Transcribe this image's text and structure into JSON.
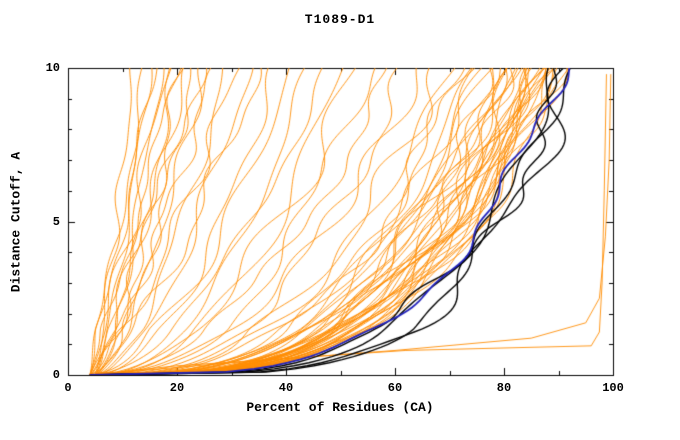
{
  "chart_data": {
    "type": "line",
    "title": "T1089-D1",
    "xlabel": "Percent of Residues (CA)",
    "ylabel": "Distance Cutoff, A",
    "xlim": [
      0,
      100
    ],
    "ylim": [
      0,
      10
    ],
    "x_ticks": [
      0,
      20,
      40,
      60,
      80,
      100
    ],
    "y_ticks": [
      0,
      5,
      10
    ],
    "grid": false,
    "legend": "none",
    "colors": {
      "orange_models": "#ff8c00",
      "black_models": "#000000",
      "blue_model": "#2222bb",
      "axis": "#000000",
      "background": "#ffffff"
    },
    "curve_format": [
      "x0_percent_at_cutoff0",
      "x_percent_at_cutoff10",
      "shape_exponent",
      "seed"
    ],
    "series": {
      "orange_models": {
        "color": "#ff8c00",
        "curves": [
          [
            5,
            12,
            0.85,
            1
          ],
          [
            4,
            14,
            0.9,
            2
          ],
          [
            5,
            15,
            0.75,
            3
          ],
          [
            4,
            16,
            0.95,
            4
          ],
          [
            5,
            17,
            0.7,
            5
          ],
          [
            4,
            18,
            0.88,
            6
          ],
          [
            5,
            19,
            0.65,
            7
          ],
          [
            4,
            20,
            0.92,
            8
          ],
          [
            5,
            21,
            0.72,
            9
          ],
          [
            4,
            22,
            0.85,
            10
          ],
          [
            5,
            23,
            0.62,
            11
          ],
          [
            4,
            24,
            0.8,
            12
          ],
          [
            5,
            25,
            0.68,
            13
          ],
          [
            4,
            27,
            0.78,
            14
          ],
          [
            5,
            29,
            0.6,
            15
          ],
          [
            4,
            31,
            0.74,
            16
          ],
          [
            5,
            33,
            0.58,
            17
          ],
          [
            4,
            35,
            0.7,
            18
          ],
          [
            5,
            38,
            0.52,
            21
          ],
          [
            4,
            41,
            0.56,
            22
          ],
          [
            5,
            44,
            0.46,
            23
          ],
          [
            4,
            47,
            0.54,
            24
          ],
          [
            5,
            50,
            0.44,
            25
          ],
          [
            4,
            53,
            0.5,
            26
          ],
          [
            5,
            56,
            0.42,
            27
          ],
          [
            4,
            59,
            0.48,
            28
          ],
          [
            5,
            62,
            0.4,
            29
          ],
          [
            4,
            65,
            0.46,
            30
          ],
          [
            5,
            68,
            0.38,
            31
          ],
          [
            4,
            70,
            0.38,
            41
          ],
          [
            5,
            72,
            0.34,
            42
          ],
          [
            4,
            73,
            0.36,
            43
          ],
          [
            5,
            74,
            0.32,
            44
          ],
          [
            4,
            75,
            0.35,
            45
          ],
          [
            5,
            76,
            0.3,
            46
          ],
          [
            4,
            77,
            0.33,
            47
          ],
          [
            5,
            78,
            0.29,
            48
          ],
          [
            4,
            78,
            0.36,
            49
          ],
          [
            5,
            79,
            0.31,
            50
          ],
          [
            4,
            80,
            0.28,
            51
          ],
          [
            5,
            80,
            0.34,
            52
          ],
          [
            4,
            81,
            0.3,
            53
          ],
          [
            5,
            81,
            0.36,
            54
          ],
          [
            4,
            82,
            0.28,
            55
          ],
          [
            5,
            82,
            0.33,
            56
          ],
          [
            4,
            83,
            0.3,
            57
          ],
          [
            5,
            83,
            0.35,
            58
          ],
          [
            4,
            84,
            0.28,
            59
          ],
          [
            5,
            84,
            0.32,
            60
          ],
          [
            4,
            85,
            0.29,
            61
          ],
          [
            5,
            85,
            0.33,
            62
          ],
          [
            4,
            85,
            0.27,
            63
          ],
          [
            5,
            86,
            0.31,
            64
          ],
          [
            4,
            86,
            0.28,
            65
          ],
          [
            5,
            86,
            0.34,
            66
          ],
          [
            4,
            87,
            0.29,
            67
          ],
          [
            5,
            87,
            0.32,
            68
          ],
          [
            4,
            87,
            0.27,
            69
          ],
          [
            5,
            88,
            0.3,
            70
          ],
          [
            4,
            88,
            0.33,
            71
          ],
          [
            5,
            88,
            0.28,
            72
          ],
          [
            4,
            89,
            0.31,
            73
          ],
          [
            5,
            89,
            0.27,
            74
          ],
          [
            4,
            89,
            0.29,
            75
          ],
          [
            5,
            90,
            0.32,
            76
          ],
          [
            4,
            90,
            0.28,
            77
          ],
          [
            5,
            90,
            0.3,
            78
          ],
          [
            4,
            91,
            0.29,
            79
          ]
        ],
        "explicit_point_curves": [
          [
            [
              4,
              0
            ],
            [
              20,
              0.3
            ],
            [
              45,
              0.6
            ],
            [
              62,
              0.8
            ],
            [
              80,
              0.88
            ],
            [
              96,
              0.95
            ],
            [
              97.5,
              1.4
            ],
            [
              98,
              3
            ],
            [
              98.4,
              6
            ],
            [
              98.8,
              9.8
            ]
          ],
          [
            [
              4,
              0
            ],
            [
              30,
              0.4
            ],
            [
              60,
              0.8
            ],
            [
              85,
              1.2
            ],
            [
              95,
              1.7
            ],
            [
              97.5,
              2.5
            ],
            [
              98.6,
              4.5
            ],
            [
              99.3,
              7
            ],
            [
              99.6,
              9.8
            ]
          ]
        ]
      },
      "black_models": {
        "color": "#000000",
        "curves": [
          [
            4,
            90,
            0.24,
            101
          ],
          [
            5,
            91,
            0.22,
            102
          ],
          [
            4,
            92,
            0.26,
            103
          ],
          [
            5,
            93,
            0.23,
            104
          ]
        ]
      },
      "blue_model": {
        "color": "#2222bb",
        "curves": [
          [
            4,
            91,
            0.27,
            120
          ]
        ]
      }
    }
  }
}
